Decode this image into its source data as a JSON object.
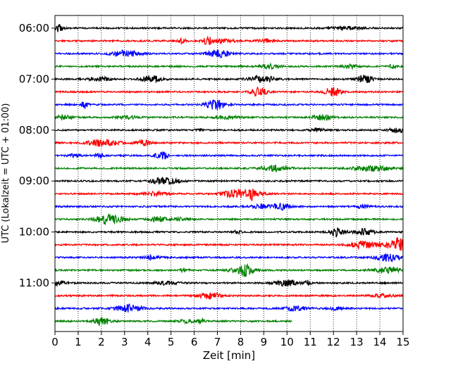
{
  "chart_data": {
    "type": "line",
    "title": "",
    "xlabel": "Zeit  [min]",
    "ylabel": "UTC (Lokalzeit = UTC + 01:00)",
    "xlim": [
      0,
      15
    ],
    "x_ticks": [
      "0",
      "1",
      "2",
      "3",
      "4",
      "5",
      "6",
      "7",
      "8",
      "9",
      "10",
      "11",
      "12",
      "13",
      "14",
      "15"
    ],
    "y_ticks": [
      "06:00",
      "07:00",
      "08:00",
      "09:00",
      "10:00",
      "11:00"
    ],
    "row_interval_min": 15,
    "grid": "vertical-dotted",
    "color_cycle": [
      "#000000",
      "#ff0000",
      "#0000ff",
      "#008000"
    ],
    "series": [
      {
        "start": "06:00",
        "end_min": 15,
        "color": "#000000"
      },
      {
        "start": "06:15",
        "end_min": 15,
        "color": "#ff0000"
      },
      {
        "start": "06:30",
        "end_min": 15,
        "color": "#0000ff"
      },
      {
        "start": "06:45",
        "end_min": 15,
        "color": "#008000"
      },
      {
        "start": "07:00",
        "end_min": 15,
        "color": "#000000"
      },
      {
        "start": "07:15",
        "end_min": 15,
        "color": "#ff0000"
      },
      {
        "start": "07:30",
        "end_min": 15,
        "color": "#0000ff"
      },
      {
        "start": "07:45",
        "end_min": 15,
        "color": "#008000"
      },
      {
        "start": "08:00",
        "end_min": 15,
        "color": "#000000"
      },
      {
        "start": "08:15",
        "end_min": 15,
        "color": "#ff0000"
      },
      {
        "start": "08:30",
        "end_min": 15,
        "color": "#0000ff"
      },
      {
        "start": "08:45",
        "end_min": 15,
        "color": "#008000"
      },
      {
        "start": "09:00",
        "end_min": 15,
        "color": "#000000"
      },
      {
        "start": "09:15",
        "end_min": 15,
        "color": "#ff0000"
      },
      {
        "start": "09:30",
        "end_min": 15,
        "color": "#0000ff"
      },
      {
        "start": "09:45",
        "end_min": 15,
        "color": "#008000"
      },
      {
        "start": "10:00",
        "end_min": 15,
        "color": "#000000"
      },
      {
        "start": "10:15",
        "end_min": 15,
        "color": "#ff0000"
      },
      {
        "start": "10:30",
        "end_min": 15,
        "color": "#0000ff"
      },
      {
        "start": "10:45",
        "end_min": 15,
        "color": "#008000"
      },
      {
        "start": "11:00",
        "end_min": 15,
        "color": "#000000"
      },
      {
        "start": "11:15",
        "end_min": 15,
        "color": "#ff0000"
      },
      {
        "start": "11:30",
        "end_min": 15,
        "color": "#0000ff"
      },
      {
        "start": "11:45",
        "end_min": 10.2,
        "color": "#008000"
      }
    ]
  }
}
